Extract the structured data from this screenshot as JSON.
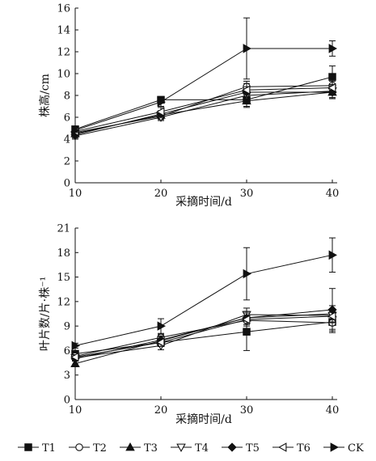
{
  "legend": {
    "placement": "bottom",
    "items": [
      {
        "label": "T1",
        "marker": "square-filled"
      },
      {
        "label": "T2",
        "marker": "circle-open"
      },
      {
        "label": "T3",
        "marker": "triangle-up-filled"
      },
      {
        "label": "T4",
        "marker": "triangle-down-open"
      },
      {
        "label": "T5",
        "marker": "diamond-filled"
      },
      {
        "label": "T6",
        "marker": "triangle-left-open"
      },
      {
        "label": "CK",
        "marker": "triangle-right-filled"
      }
    ]
  },
  "chart_data": [
    {
      "type": "line",
      "xlabel": "采摘时间/d",
      "ylabel": "株高/cm",
      "xlim": [
        10,
        40
      ],
      "ylim": [
        0,
        16
      ],
      "xticks": [
        10,
        20,
        30,
        40
      ],
      "yticks": [
        0,
        2,
        4,
        6,
        8,
        10,
        12,
        14,
        16
      ],
      "grid": false,
      "x": [
        10,
        20,
        30,
        40
      ],
      "series": [
        {
          "name": "T1",
          "marker": "square-filled",
          "values": [
            4.9,
            7.6,
            7.6,
            9.7
          ],
          "err": [
            0.2,
            0.3,
            0.6,
            1.0
          ]
        },
        {
          "name": "T2",
          "marker": "circle-open",
          "values": [
            4.6,
            6.1,
            8.8,
            8.9
          ],
          "err": [
            0.2,
            0.3,
            0.5,
            0.6
          ]
        },
        {
          "name": "T3",
          "marker": "triangle-up-filled",
          "values": [
            4.5,
            6.2,
            7.5,
            8.3
          ],
          "err": [
            0.3,
            0.3,
            0.6,
            0.6
          ]
        },
        {
          "name": "T4",
          "marker": "triangle-down-open",
          "values": [
            4.3,
            6.0,
            8.0,
            8.4
          ],
          "err": [
            0.3,
            0.3,
            0.6,
            0.6
          ]
        },
        {
          "name": "T5",
          "marker": "diamond-filled",
          "values": [
            4.4,
            6.3,
            8.3,
            8.3
          ],
          "err": [
            0.3,
            0.3,
            0.5,
            0.5
          ]
        },
        {
          "name": "T6",
          "marker": "triangle-left-open",
          "values": [
            4.7,
            6.5,
            8.5,
            8.7
          ],
          "err": [
            0.3,
            0.4,
            0.6,
            0.6
          ]
        },
        {
          "name": "CK",
          "marker": "triangle-right-filled",
          "values": [
            4.8,
            7.4,
            12.3,
            12.3
          ],
          "err": [
            0.2,
            0.4,
            2.8,
            0.7
          ]
        }
      ]
    },
    {
      "type": "line",
      "xlabel": "采摘时间/d",
      "ylabel": "叶片数/片·株⁻¹",
      "xlim": [
        10,
        40
      ],
      "ylim": [
        0,
        21
      ],
      "xticks": [
        10,
        20,
        30,
        40
      ],
      "yticks": [
        0,
        3,
        6,
        9,
        12,
        15,
        18,
        21
      ],
      "grid": false,
      "x": [
        10,
        20,
        30,
        40
      ],
      "series": [
        {
          "name": "T1",
          "marker": "square-filled",
          "values": [
            5.6,
            7.0,
            8.3,
            9.5
          ],
          "err": [
            0.4,
            0.5,
            2.3,
            1.3
          ]
        },
        {
          "name": "T2",
          "marker": "circle-open",
          "values": [
            5.3,
            7.6,
            9.7,
            9.4
          ],
          "err": [
            0.3,
            0.4,
            1.0,
            0.8
          ]
        },
        {
          "name": "T3",
          "marker": "triangle-up-filled",
          "values": [
            4.4,
            7.2,
            10.0,
            10.5
          ],
          "err": [
            0.3,
            0.5,
            0.8,
            1.0
          ]
        },
        {
          "name": "T4",
          "marker": "triangle-down-open",
          "values": [
            5.1,
            6.6,
            10.4,
            10.3
          ],
          "err": [
            0.3,
            0.5,
            0.8,
            0.8
          ]
        },
        {
          "name": "T5",
          "marker": "diamond-filled",
          "values": [
            5.0,
            7.3,
            10.0,
            11.0
          ],
          "err": [
            0.3,
            0.5,
            0.8,
            2.6
          ]
        },
        {
          "name": "T6",
          "marker": "triangle-left-open",
          "values": [
            5.2,
            7.0,
            9.8,
            10.2
          ],
          "err": [
            0.3,
            0.5,
            0.8,
            0.8
          ]
        },
        {
          "name": "CK",
          "marker": "triangle-right-filled",
          "values": [
            6.6,
            9.0,
            15.4,
            17.7
          ],
          "err": [
            0.3,
            0.9,
            3.2,
            2.1
          ]
        }
      ]
    }
  ]
}
